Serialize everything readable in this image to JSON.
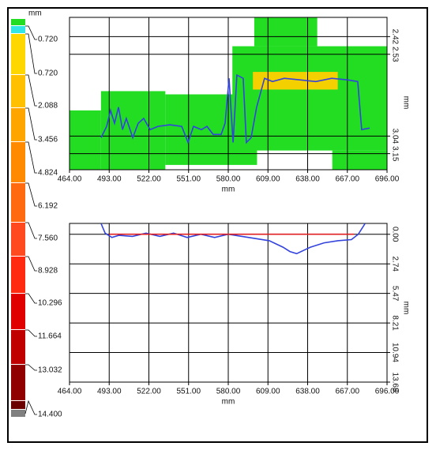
{
  "color_scale": {
    "unit": "mm",
    "colors": [
      "#22dd22",
      "#33e6e6",
      "#ffd700",
      "#ffc000",
      "#ffa500",
      "#ff8a00",
      "#ff6a10",
      "#ff4a20",
      "#ff2a10",
      "#e00000",
      "#c00000",
      "#900000",
      "#6a0000",
      "#808080"
    ],
    "labels": [
      "0.720",
      "0.720",
      "2.088",
      "3.456",
      "4.824",
      "6.192",
      "7.560",
      "8.928",
      "10.296",
      "11.664",
      "13.032",
      "14.400"
    ]
  },
  "chart_data": [
    {
      "type": "heatmap",
      "x_label": "mm",
      "y_label": "mm",
      "xlim": [
        464,
        696
      ],
      "xticks": [
        {
          "value": 464,
          "label": "464.00"
        },
        {
          "value": 493,
          "label": "493.00"
        },
        {
          "value": 522,
          "label": "522.00"
        },
        {
          "value": 551,
          "label": "551.00"
        },
        {
          "value": 580,
          "label": "580.00"
        },
        {
          "value": 609,
          "label": "609.00"
        },
        {
          "value": 638,
          "label": "638.00"
        },
        {
          "value": 667,
          "label": "667.00"
        },
        {
          "value": 696,
          "label": "696.00"
        }
      ],
      "ylim": [
        2.3,
        3.25
      ],
      "yticks": [
        2.42,
        2.53,
        3.04,
        3.15
      ],
      "regions": [
        {
          "color": "#22dd22",
          "x": [
            464,
            487
          ],
          "y": [
            2.88,
            3.25
          ]
        },
        {
          "color": "#22dd22",
          "x": [
            487,
            534
          ],
          "y": [
            2.76,
            3.25
          ]
        },
        {
          "color": "#22dd22",
          "x": [
            534,
            601
          ],
          "y": [
            2.78,
            3.22
          ]
        },
        {
          "color": "#22dd22",
          "x": [
            583,
            696
          ],
          "y": [
            2.48,
            3.13
          ]
        },
        {
          "color": "#22dd22",
          "x": [
            599,
            645
          ],
          "y": [
            2.3,
            2.48
          ]
        },
        {
          "color": "#22dd22",
          "x": [
            656,
            696
          ],
          "y": [
            3.13,
            3.25
          ]
        },
        {
          "color": "#f5d000",
          "x": [
            598,
            660
          ],
          "y": [
            2.64,
            2.75
          ]
        }
      ],
      "line_color": "#3344dd",
      "x": [
        487.1,
        491.1,
        494.0,
        496.9,
        499.8,
        502.7,
        505.5,
        510.2,
        514.2,
        518.2,
        522.9,
        528.6,
        537.3,
        546.0,
        550.6,
        554.6,
        560.4,
        564.4,
        569.0,
        574.8,
        577.7,
        580.6,
        583.5,
        586.3,
        590.9,
        593.2,
        596.7,
        600.7,
        606.5,
        612.3,
        620.9,
        632.5,
        644.0,
        655.6,
        667.1,
        674.6,
        677.5,
        683.3
      ],
      "values": [
        3.05,
        2.98,
        2.88,
        2.96,
        2.86,
        3.0,
        2.93,
        3.05,
        2.96,
        2.93,
        3.0,
        2.98,
        2.97,
        2.98,
        3.08,
        2.98,
        3.0,
        2.98,
        3.03,
        3.03,
        2.96,
        2.68,
        3.08,
        2.66,
        2.68,
        3.08,
        3.05,
        2.86,
        2.68,
        2.7,
        2.68,
        2.69,
        2.7,
        2.68,
        2.69,
        2.7,
        3.0,
        2.99
      ]
    },
    {
      "type": "line",
      "x_label": "mm",
      "y_label": "mm",
      "xlim": [
        464,
        696
      ],
      "xticks": [
        {
          "value": 464,
          "label": "464.00"
        },
        {
          "value": 493,
          "label": "493.00"
        },
        {
          "value": 522,
          "label": "522.00"
        },
        {
          "value": 551,
          "label": "551.00"
        },
        {
          "value": 580,
          "label": "580.00"
        },
        {
          "value": 609,
          "label": "609.00"
        },
        {
          "value": 638,
          "label": "638.00"
        },
        {
          "value": 667,
          "label": "667.00"
        },
        {
          "value": 696,
          "label": "696.00"
        }
      ],
      "ylim": [
        -1,
        13.68
      ],
      "yticks": [
        {
          "value": 0,
          "label": "0.00"
        },
        2.74,
        5.47,
        8.21,
        10.94,
        13.68
      ],
      "series": [
        {
          "color": "#3344dd",
          "x": [
            487,
            490,
            495,
            500,
            510,
            520,
            530,
            540,
            550,
            560,
            570,
            580,
            590,
            600,
            610,
            615,
            620,
            625,
            630,
            635,
            640,
            650,
            660,
            670,
            675,
            680
          ],
          "values": [
            -1,
            -0.1,
            0.3,
            0.1,
            0.2,
            -0.1,
            0.2,
            -0.1,
            0.3,
            0.0,
            0.3,
            0.0,
            0.2,
            0.4,
            0.6,
            0.9,
            1.2,
            1.6,
            1.8,
            1.5,
            1.2,
            0.8,
            0.6,
            0.5,
            0.0,
            -1
          ]
        },
        {
          "color": "#e02020",
          "x": [
            493,
            672
          ],
          "values": [
            0,
            0
          ]
        }
      ]
    }
  ]
}
